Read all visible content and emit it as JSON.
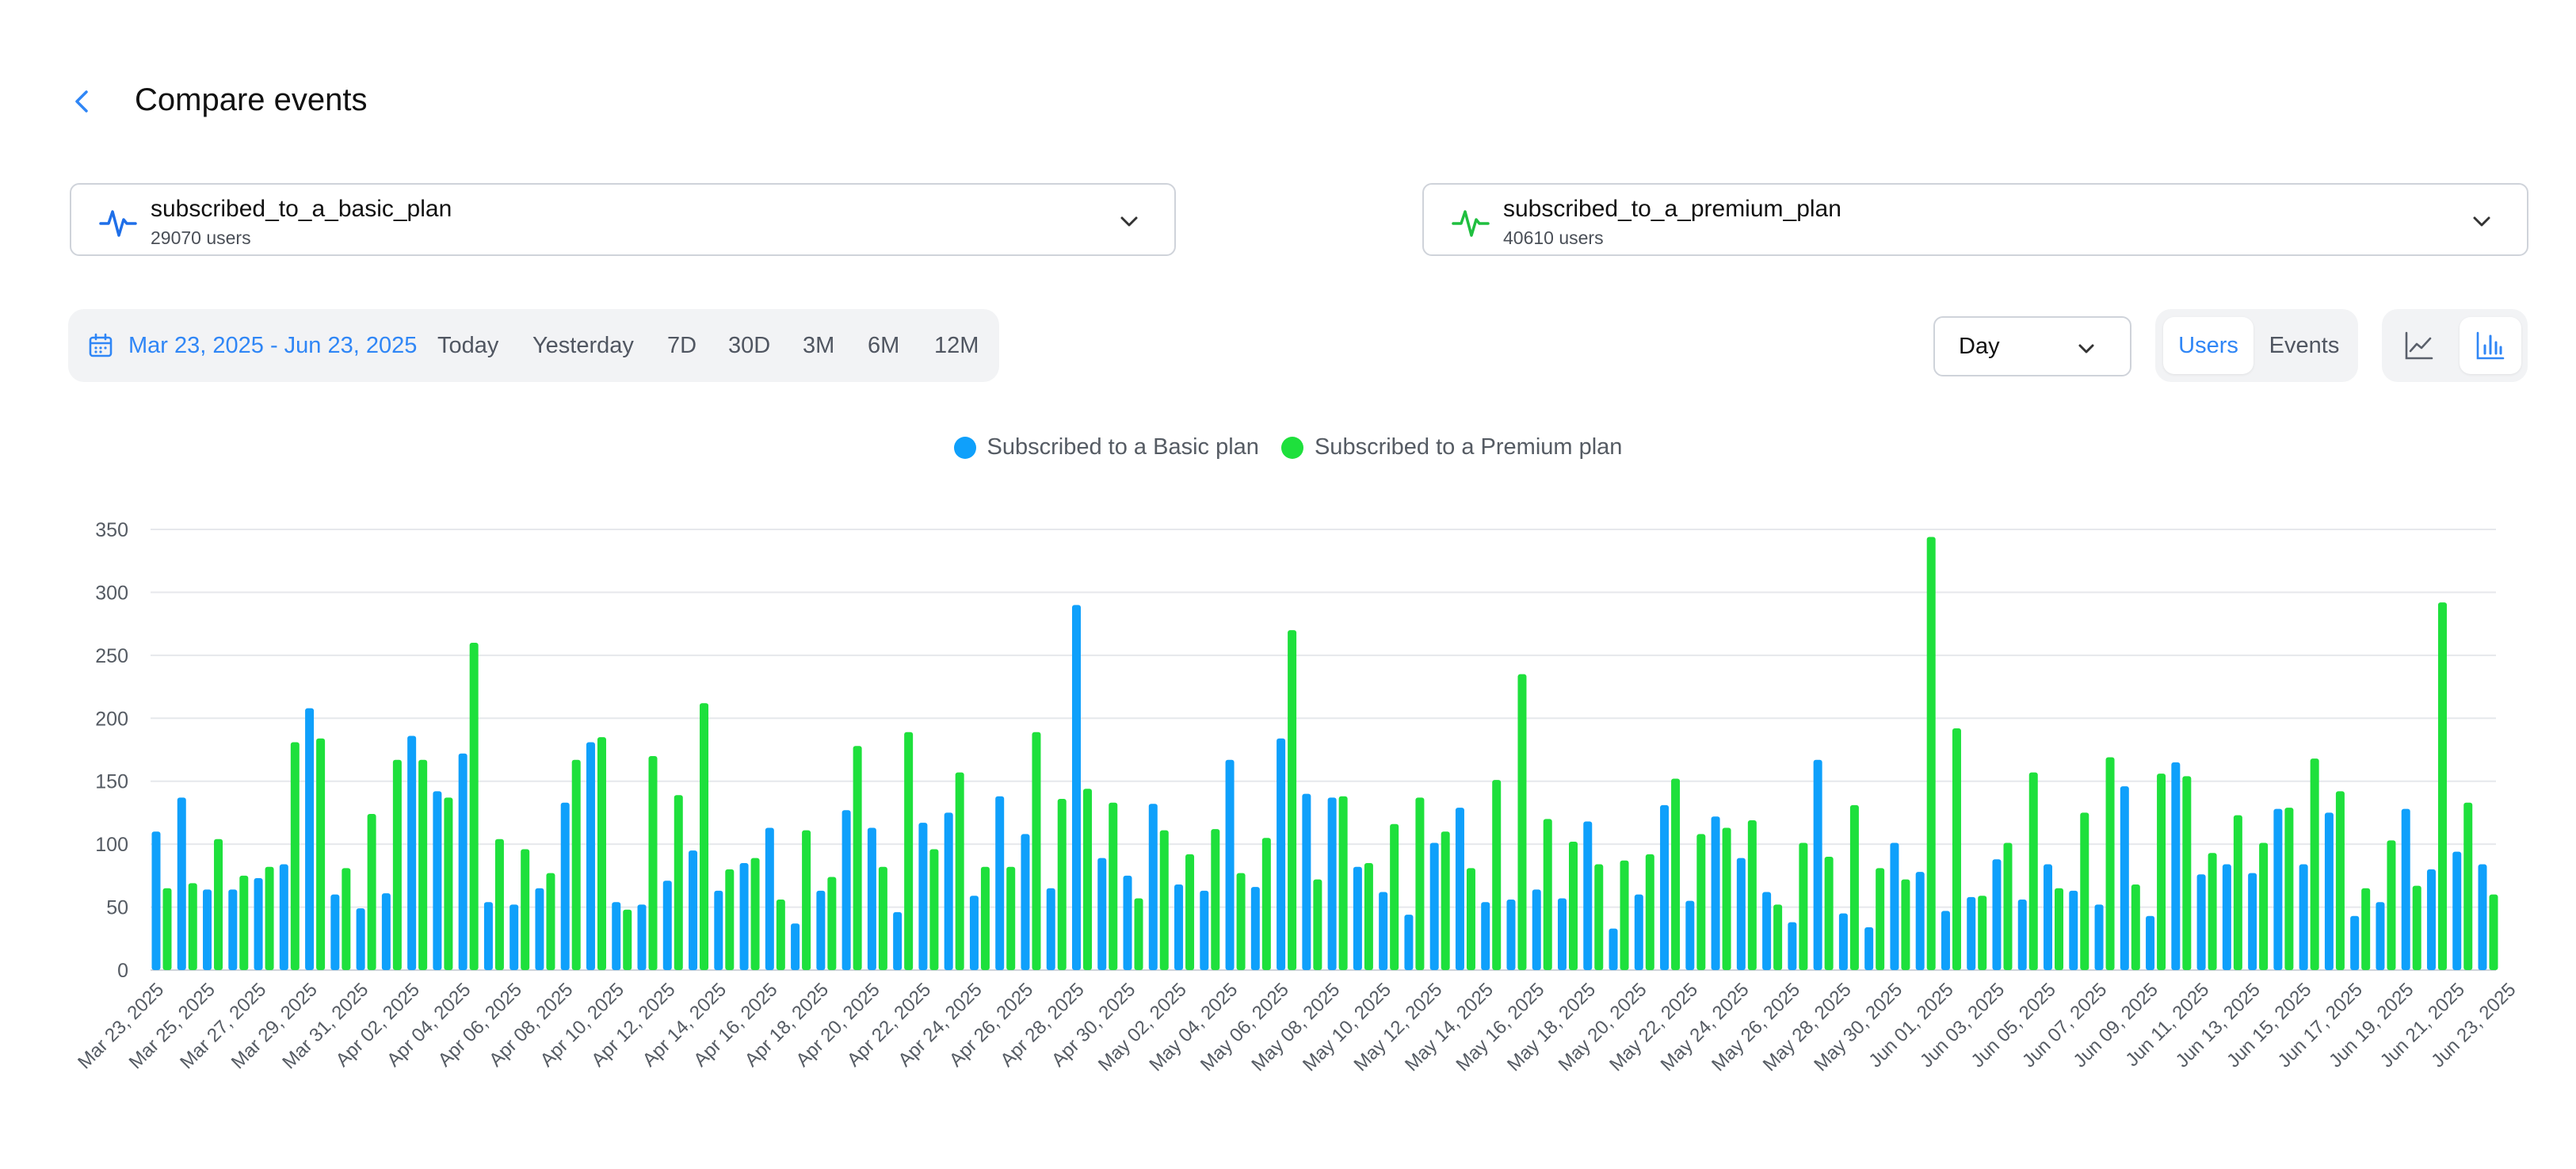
{
  "header": {
    "title": "Compare events"
  },
  "event_a": {
    "name": "subscribed_to_a_basic_plan",
    "count": "29070 users",
    "color": "#1f6fe8"
  },
  "event_b": {
    "name": "subscribed_to_a_premium_plan",
    "count": "40610 users",
    "color": "#1fbf3f"
  },
  "date_filter": {
    "range": "Mar 23, 2025 - Jun 23, 2025",
    "presets": [
      "Today",
      "Yesterday",
      "7D",
      "30D",
      "3M",
      "6M",
      "12M"
    ]
  },
  "granularity": {
    "selected": "Day"
  },
  "metric_toggle": {
    "users": "Users",
    "events": "Events",
    "active": "Users"
  },
  "chart_toggle": {
    "options": [
      "line-chart-icon",
      "bar-chart-icon"
    ],
    "active": "bar-chart-icon"
  },
  "legend": [
    "Subscribed to a Basic plan",
    "Subscribed to a Premium plan"
  ],
  "colors": {
    "basic": "#0fa0fb",
    "premium": "#1ee03c",
    "accent": "#2f86f6"
  },
  "chart_data": {
    "type": "bar",
    "ylim": [
      0,
      350
    ],
    "yticks": [
      0,
      50,
      100,
      150,
      200,
      250,
      300,
      350
    ],
    "grid": true,
    "legend_position": "top-center",
    "tick_labels": [
      "Mar 23, 2025",
      "Mar 25, 2025",
      "Mar 27, 2025",
      "Mar 29, 2025",
      "Mar 31, 2025",
      "Apr 02, 2025",
      "Apr 04, 2025",
      "Apr 06, 2025",
      "Apr 08, 2025",
      "Apr 10, 2025",
      "Apr 12, 2025",
      "Apr 14, 2025",
      "Apr 16, 2025",
      "Apr 18, 2025",
      "Apr 20, 2025",
      "Apr 22, 2025",
      "Apr 24, 2025",
      "Apr 26, 2025",
      "Apr 28, 2025",
      "Apr 30, 2025",
      "May 02, 2025",
      "May 04, 2025",
      "May 06, 2025",
      "May 08, 2025",
      "May 10, 2025",
      "May 12, 2025",
      "May 14, 2025",
      "May 16, 2025",
      "May 18, 2025",
      "May 20, 2025",
      "May 22, 2025",
      "May 24, 2025",
      "May 26, 2025",
      "May 28, 2025",
      "May 30, 2025",
      "Jun 01, 2025",
      "Jun 03, 2025",
      "Jun 05, 2025",
      "Jun 07, 2025",
      "Jun 09, 2025",
      "Jun 11, 2025",
      "Jun 13, 2025",
      "Jun 15, 2025",
      "Jun 17, 2025",
      "Jun 19, 2025",
      "Jun 21, 2025",
      "Jun 23, 2025"
    ],
    "series": [
      {
        "name": "Subscribed to a Basic plan",
        "values": [
          110,
          137,
          64,
          64,
          73,
          84,
          208,
          60,
          49,
          61,
          186,
          142,
          172,
          54,
          52,
          65,
          133,
          181,
          54,
          52,
          71,
          95,
          63,
          85,
          113,
          37,
          63,
          127,
          113,
          46,
          117,
          125,
          59,
          138,
          108,
          65,
          290,
          89,
          75,
          132,
          68,
          63,
          167,
          66,
          184,
          140,
          137,
          82,
          62,
          44,
          101,
          129,
          54,
          56,
          64,
          57,
          118,
          33,
          60,
          131,
          55,
          122,
          89,
          62,
          38,
          167,
          45,
          34,
          101,
          78,
          47,
          58,
          88,
          56,
          84,
          63,
          52,
          146,
          43,
          165,
          76,
          84,
          77,
          128,
          84,
          125,
          43,
          54,
          128,
          80,
          94,
          84
        ]
      },
      {
        "name": "Subscribed to a Premium plan",
        "values": [
          65,
          69,
          104,
          75,
          82,
          181,
          184,
          81,
          124,
          167,
          167,
          137,
          260,
          104,
          96,
          77,
          167,
          185,
          48,
          170,
          139,
          212,
          80,
          89,
          56,
          111,
          74,
          178,
          82,
          189,
          96,
          157,
          82,
          82,
          189,
          136,
          144,
          133,
          57,
          111,
          92,
          112,
          77,
          105,
          270,
          72,
          138,
          85,
          116,
          137,
          110,
          81,
          151,
          235,
          120,
          102,
          84,
          87,
          92,
          152,
          108,
          113,
          119,
          52,
          101,
          90,
          131,
          81,
          72,
          344,
          192,
          59,
          101,
          157,
          65,
          125,
          169,
          68,
          156,
          154,
          93,
          123,
          101,
          129,
          168,
          142,
          65,
          103,
          67,
          292,
          133,
          60
        ]
      }
    ]
  }
}
